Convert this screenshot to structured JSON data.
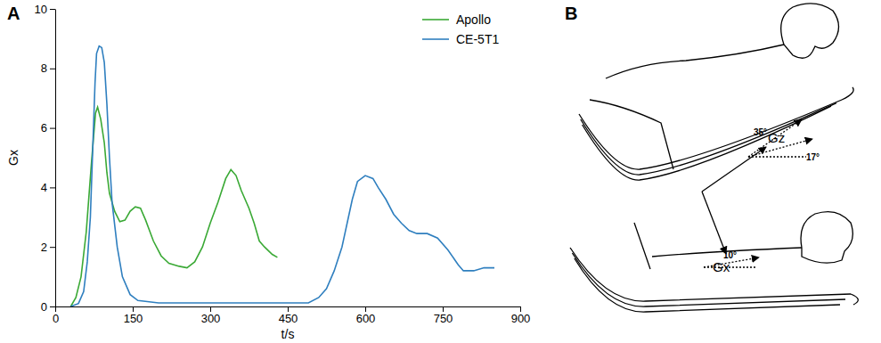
{
  "chart_data": {
    "type": "line",
    "x_label": "t/s",
    "y_label": "Gx",
    "xlim": [
      0,
      900
    ],
    "xticks": [
      0,
      150,
      300,
      450,
      600,
      750,
      900
    ],
    "ylim": [
      0,
      10
    ],
    "yticks": [
      0,
      2,
      4,
      6,
      8,
      10
    ],
    "grid": false,
    "legend": "upper right",
    "series": [
      {
        "name": "Apollo",
        "color": "#3aa935",
        "x": [
          30,
          40,
          50,
          60,
          70,
          78,
          82,
          88,
          95,
          100,
          105,
          115,
          125,
          135,
          145,
          155,
          165,
          175,
          190,
          205,
          220,
          240,
          255,
          270,
          285,
          300,
          315,
          330,
          340,
          350,
          360,
          375,
          385,
          395,
          405,
          420,
          430
        ],
        "values": [
          0,
          0.3,
          1,
          2.5,
          4.8,
          6.5,
          6.7,
          6.3,
          5.5,
          4.5,
          3.8,
          3.2,
          2.85,
          2.9,
          3.2,
          3.35,
          3.3,
          2.9,
          2.2,
          1.7,
          1.45,
          1.35,
          1.3,
          1.5,
          2.0,
          2.8,
          3.5,
          4.3,
          4.6,
          4.4,
          3.9,
          3.3,
          2.8,
          2.2,
          2.0,
          1.75,
          1.65
        ]
      },
      {
        "name": "CE-5T1",
        "color": "#2f7fbf",
        "x": [
          30,
          45,
          55,
          62,
          68,
          73,
          77,
          80,
          85,
          90,
          95,
          100,
          105,
          110,
          120,
          130,
          145,
          160,
          200,
          300,
          400,
          490,
          510,
          525,
          540,
          555,
          565,
          575,
          585,
          600,
          615,
          625,
          640,
          655,
          670,
          685,
          700,
          720,
          740,
          760,
          780,
          790,
          810,
          830,
          850
        ],
        "values": [
          0,
          0.1,
          0.5,
          1.5,
          3,
          5.5,
          7.5,
          8.5,
          8.75,
          8.7,
          8.2,
          6.8,
          5,
          3.5,
          2,
          1,
          0.4,
          0.2,
          0.12,
          0.12,
          0.12,
          0.12,
          0.3,
          0.6,
          1.2,
          2.0,
          2.8,
          3.6,
          4.2,
          4.4,
          4.3,
          4.0,
          3.6,
          3.1,
          2.8,
          2.55,
          2.45,
          2.45,
          2.3,
          1.9,
          1.4,
          1.2,
          1.2,
          1.3,
          1.3
        ]
      }
    ]
  },
  "panel_labels": [
    "A",
    "B"
  ],
  "diagram": {
    "axes": [
      "Gz",
      "Gx"
    ],
    "angles": [
      "35°",
      "17°",
      "10°"
    ]
  }
}
